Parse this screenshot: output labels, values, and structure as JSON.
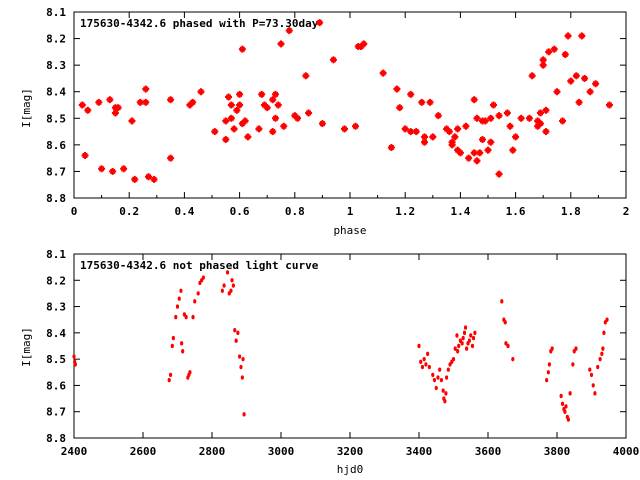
{
  "chart_data": [
    {
      "type": "scatter",
      "title": "175630-4342.6 phased with P=73.30day",
      "xlabel": "phase",
      "ylabel": "I[mag]",
      "xlim": [
        0,
        2
      ],
      "ylim": [
        8.8,
        8.1
      ],
      "y_inverted": true,
      "xticks": [
        0,
        0.2,
        0.4,
        0.6,
        0.8,
        1,
        1.2,
        1.4,
        1.6,
        1.8,
        2
      ],
      "xtick_labels": [
        "0",
        "0.2",
        "0.4",
        "0.6",
        "0.8",
        "1",
        "1.2",
        "1.4",
        "1.6",
        "1.8",
        "2"
      ],
      "yticks": [
        8.1,
        8.2,
        8.3,
        8.4,
        8.5,
        8.6,
        8.7,
        8.8
      ],
      "ytick_labels": [
        "8.1",
        "8.2",
        "8.3",
        "8.4",
        "8.5",
        "8.6",
        "8.7",
        "8.8"
      ],
      "grid": false,
      "marker_color": "#ff0000",
      "points": [
        [
          0.03,
          8.45
        ],
        [
          0.04,
          8.64
        ],
        [
          0.05,
          8.47
        ],
        [
          0.09,
          8.44
        ],
        [
          0.1,
          8.69
        ],
        [
          0.13,
          8.43
        ],
        [
          0.14,
          8.7
        ],
        [
          0.15,
          8.46
        ],
        [
          0.15,
          8.48
        ],
        [
          0.16,
          8.46
        ],
        [
          0.18,
          8.69
        ],
        [
          0.21,
          8.51
        ],
        [
          0.22,
          8.73
        ],
        [
          0.24,
          8.44
        ],
        [
          0.26,
          8.44
        ],
        [
          0.26,
          8.39
        ],
        [
          0.27,
          8.72
        ],
        [
          0.29,
          8.73
        ],
        [
          0.35,
          8.43
        ],
        [
          0.35,
          8.65
        ],
        [
          0.42,
          8.45
        ],
        [
          0.43,
          8.44
        ],
        [
          0.46,
          8.4
        ],
        [
          0.51,
          8.55
        ],
        [
          0.55,
          8.51
        ],
        [
          0.55,
          8.58
        ],
        [
          0.56,
          8.42
        ],
        [
          0.57,
          8.45
        ],
        [
          0.57,
          8.5
        ],
        [
          0.58,
          8.54
        ],
        [
          0.59,
          8.47
        ],
        [
          0.6,
          8.41
        ],
        [
          0.6,
          8.45
        ],
        [
          0.61,
          8.24
        ],
        [
          0.61,
          8.52
        ],
        [
          0.62,
          8.51
        ],
        [
          0.63,
          8.57
        ],
        [
          0.67,
          8.54
        ],
        [
          0.68,
          8.41
        ],
        [
          0.69,
          8.45
        ],
        [
          0.7,
          8.46
        ],
        [
          0.72,
          8.43
        ],
        [
          0.72,
          8.55
        ],
        [
          0.73,
          8.41
        ],
        [
          0.73,
          8.5
        ],
        [
          0.74,
          8.45
        ],
        [
          0.75,
          8.22
        ],
        [
          0.76,
          8.53
        ],
        [
          0.78,
          8.17
        ],
        [
          0.8,
          8.49
        ],
        [
          0.81,
          8.5
        ],
        [
          0.84,
          8.34
        ],
        [
          0.85,
          8.48
        ],
        [
          0.89,
          8.14
        ],
        [
          0.9,
          8.52
        ],
        [
          0.94,
          8.28
        ],
        [
          0.98,
          8.54
        ],
        [
          1.02,
          8.53
        ],
        [
          1.03,
          8.23
        ],
        [
          1.04,
          8.23
        ],
        [
          1.05,
          8.22
        ],
        [
          1.12,
          8.33
        ],
        [
          1.15,
          8.61
        ],
        [
          1.17,
          8.39
        ],
        [
          1.18,
          8.46
        ],
        [
          1.2,
          8.54
        ],
        [
          1.22,
          8.41
        ],
        [
          1.22,
          8.55
        ],
        [
          1.24,
          8.55
        ],
        [
          1.26,
          8.44
        ],
        [
          1.27,
          8.57
        ],
        [
          1.27,
          8.59
        ],
        [
          1.29,
          8.44
        ],
        [
          1.3,
          8.57
        ],
        [
          1.32,
          8.49
        ],
        [
          1.35,
          8.54
        ],
        [
          1.36,
          8.55
        ],
        [
          1.37,
          8.59
        ],
        [
          1.37,
          8.6
        ],
        [
          1.38,
          8.57
        ],
        [
          1.39,
          8.54
        ],
        [
          1.39,
          8.62
        ],
        [
          1.4,
          8.63
        ],
        [
          1.42,
          8.53
        ],
        [
          1.43,
          8.65
        ],
        [
          1.45,
          8.43
        ],
        [
          1.45,
          8.63
        ],
        [
          1.46,
          8.5
        ],
        [
          1.46,
          8.66
        ],
        [
          1.47,
          8.63
        ],
        [
          1.48,
          8.51
        ],
        [
          1.48,
          8.58
        ],
        [
          1.49,
          8.51
        ],
        [
          1.5,
          8.62
        ],
        [
          1.51,
          8.5
        ],
        [
          1.51,
          8.59
        ],
        [
          1.52,
          8.45
        ],
        [
          1.54,
          8.49
        ],
        [
          1.54,
          8.71
        ],
        [
          1.57,
          8.48
        ],
        [
          1.58,
          8.53
        ],
        [
          1.59,
          8.62
        ],
        [
          1.6,
          8.57
        ],
        [
          1.62,
          8.5
        ],
        [
          1.65,
          8.5
        ],
        [
          1.66,
          8.34
        ],
        [
          1.68,
          8.51
        ],
        [
          1.68,
          8.53
        ],
        [
          1.69,
          8.48
        ],
        [
          1.69,
          8.52
        ],
        [
          1.7,
          8.28
        ],
        [
          1.7,
          8.3
        ],
        [
          1.71,
          8.47
        ],
        [
          1.71,
          8.55
        ],
        [
          1.72,
          8.25
        ],
        [
          1.74,
          8.24
        ],
        [
          1.75,
          8.4
        ],
        [
          1.77,
          8.51
        ],
        [
          1.78,
          8.26
        ],
        [
          1.79,
          8.19
        ],
        [
          1.8,
          8.36
        ],
        [
          1.82,
          8.34
        ],
        [
          1.83,
          8.44
        ],
        [
          1.84,
          8.19
        ],
        [
          1.85,
          8.35
        ],
        [
          1.87,
          8.4
        ],
        [
          1.89,
          8.37
        ],
        [
          1.94,
          8.45
        ]
      ]
    },
    {
      "type": "scatter",
      "title": "175630-4342.6 not phased light curve",
      "xlabel": "hjd0",
      "ylabel": "I[mag]",
      "xlim": [
        2400,
        4000
      ],
      "ylim": [
        8.8,
        8.1
      ],
      "y_inverted": true,
      "xticks": [
        2400,
        2600,
        2800,
        3000,
        3200,
        3400,
        3600,
        3800,
        4000
      ],
      "xtick_labels": [
        "2400",
        "2600",
        "2800",
        "3000",
        "3200",
        "3400",
        "3600",
        "3800",
        "4000"
      ],
      "yticks": [
        8.1,
        8.2,
        8.3,
        8.4,
        8.5,
        8.6,
        8.7,
        8.8
      ],
      "ytick_labels": [
        "8.1",
        "8.2",
        "8.3",
        "8.4",
        "8.5",
        "8.6",
        "8.7",
        "8.8"
      ],
      "grid": false,
      "marker_color": "#ff0000",
      "points": [
        [
          2400,
          8.49
        ],
        [
          2402,
          8.51
        ],
        [
          2404,
          8.52
        ],
        [
          2676,
          8.58
        ],
        [
          2680,
          8.56
        ],
        [
          2685,
          8.45
        ],
        [
          2688,
          8.42
        ],
        [
          2695,
          8.34
        ],
        [
          2700,
          8.3
        ],
        [
          2705,
          8.27
        ],
        [
          2710,
          8.24
        ],
        [
          2712,
          8.44
        ],
        [
          2715,
          8.47
        ],
        [
          2720,
          8.33
        ],
        [
          2725,
          8.34
        ],
        [
          2730,
          8.57
        ],
        [
          2733,
          8.56
        ],
        [
          2736,
          8.55
        ],
        [
          2745,
          8.34
        ],
        [
          2750,
          8.28
        ],
        [
          2760,
          8.25
        ],
        [
          2765,
          8.21
        ],
        [
          2770,
          8.2
        ],
        [
          2775,
          8.19
        ],
        [
          2830,
          8.24
        ],
        [
          2835,
          8.22
        ],
        [
          2845,
          8.17
        ],
        [
          2850,
          8.25
        ],
        [
          2855,
          8.24
        ],
        [
          2858,
          8.2
        ],
        [
          2862,
          8.22
        ],
        [
          2866,
          8.39
        ],
        [
          2870,
          8.43
        ],
        [
          2875,
          8.4
        ],
        [
          2880,
          8.49
        ],
        [
          2884,
          8.53
        ],
        [
          2888,
          8.57
        ],
        [
          2890,
          8.5
        ],
        [
          2893,
          8.71
        ],
        [
          3400,
          8.45
        ],
        [
          3405,
          8.51
        ],
        [
          3410,
          8.53
        ],
        [
          3415,
          8.5
        ],
        [
          3420,
          8.52
        ],
        [
          3425,
          8.48
        ],
        [
          3430,
          8.53
        ],
        [
          3440,
          8.56
        ],
        [
          3445,
          8.58
        ],
        [
          3450,
          8.61
        ],
        [
          3455,
          8.57
        ],
        [
          3460,
          8.54
        ],
        [
          3465,
          8.58
        ],
        [
          3470,
          8.62
        ],
        [
          3472,
          8.65
        ],
        [
          3475,
          8.66
        ],
        [
          3478,
          8.63
        ],
        [
          3480,
          8.57
        ],
        [
          3485,
          8.54
        ],
        [
          3490,
          8.52
        ],
        [
          3495,
          8.51
        ],
        [
          3500,
          8.5
        ],
        [
          3505,
          8.46
        ],
        [
          3510,
          8.41
        ],
        [
          3512,
          8.47
        ],
        [
          3515,
          8.45
        ],
        [
          3520,
          8.43
        ],
        [
          3525,
          8.44
        ],
        [
          3528,
          8.42
        ],
        [
          3532,
          8.4
        ],
        [
          3535,
          8.38
        ],
        [
          3538,
          8.46
        ],
        [
          3542,
          8.44
        ],
        [
          3546,
          8.43
        ],
        [
          3550,
          8.41
        ],
        [
          3555,
          8.45
        ],
        [
          3558,
          8.42
        ],
        [
          3562,
          8.4
        ],
        [
          3640,
          8.28
        ],
        [
          3646,
          8.35
        ],
        [
          3650,
          8.36
        ],
        [
          3652,
          8.44
        ],
        [
          3658,
          8.45
        ],
        [
          3672,
          8.5
        ],
        [
          3770,
          8.58
        ],
        [
          3775,
          8.55
        ],
        [
          3778,
          8.52
        ],
        [
          3782,
          8.47
        ],
        [
          3786,
          8.46
        ],
        [
          3812,
          8.64
        ],
        [
          3816,
          8.67
        ],
        [
          3820,
          8.69
        ],
        [
          3823,
          8.7
        ],
        [
          3826,
          8.68
        ],
        [
          3830,
          8.72
        ],
        [
          3833,
          8.73
        ],
        [
          3838,
          8.63
        ],
        [
          3846,
          8.52
        ],
        [
          3850,
          8.47
        ],
        [
          3855,
          8.46
        ],
        [
          3895,
          8.54
        ],
        [
          3900,
          8.56
        ],
        [
          3905,
          8.6
        ],
        [
          3910,
          8.63
        ],
        [
          3918,
          8.53
        ],
        [
          3925,
          8.5
        ],
        [
          3930,
          8.48
        ],
        [
          3933,
          8.46
        ],
        [
          3936,
          8.4
        ],
        [
          3940,
          8.36
        ],
        [
          3945,
          8.35
        ]
      ]
    }
  ]
}
